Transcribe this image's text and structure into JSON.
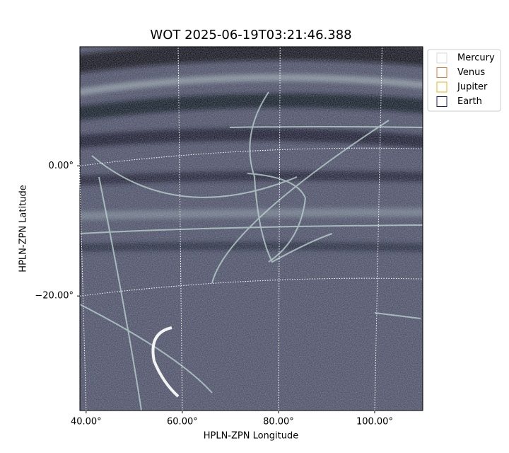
{
  "chart_data": {
    "type": "image",
    "title": "WOT 2025-06-19T03:21:46.388",
    "x_label": "HPLN-ZPN Longitude",
    "y_label": "HPLN-ZPN Latitude",
    "xlim": [
      38.7,
      110
    ],
    "ylim": [
      -37.6,
      18.3
    ],
    "xticks": [
      {
        "value": 40,
        "label": "40.00°"
      },
      {
        "value": 60,
        "label": "60.00°"
      },
      {
        "value": 80,
        "label": "80.00°"
      },
      {
        "value": 100,
        "label": "100.00°"
      }
    ],
    "yticks": [
      {
        "value": 0,
        "label": "0.00°"
      },
      {
        "value": -20,
        "label": "−20.00°"
      }
    ],
    "grid": true,
    "legend_position": "outside-upper-right",
    "legend": [
      {
        "name": "Mercury",
        "color": "#d9d9d9"
      },
      {
        "name": "Venus",
        "color": "#e07b39"
      },
      {
        "name": "Jupiter",
        "color": "#e8b520"
      },
      {
        "name": "Earth",
        "color": "#1b1b6b"
      }
    ]
  }
}
